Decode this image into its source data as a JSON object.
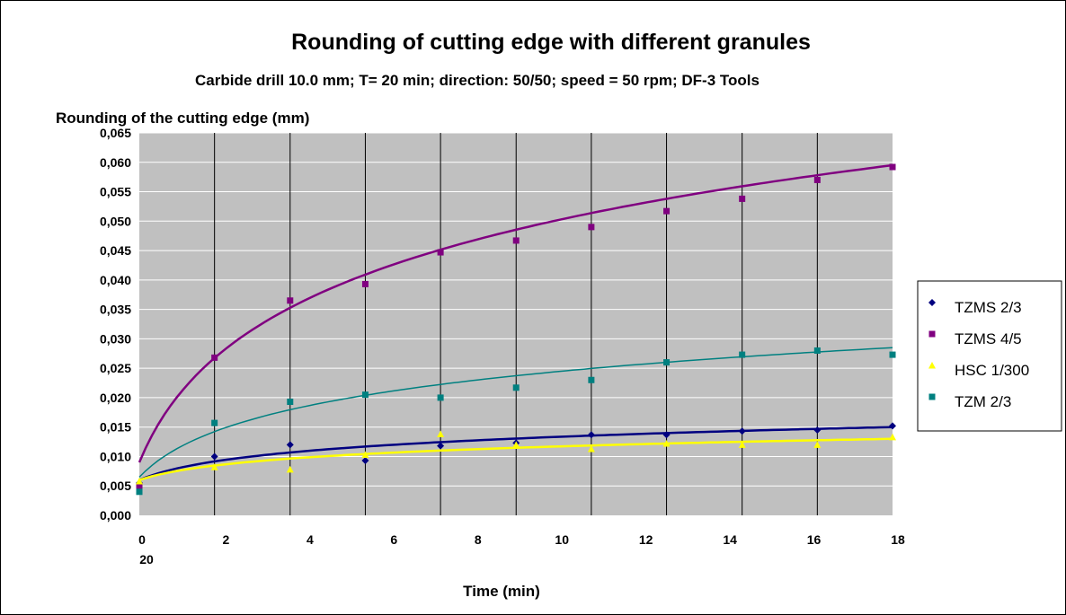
{
  "chart_data": {
    "type": "scatter",
    "title": "Rounding of cutting edge with different granules",
    "subtitle": "Carbide drill 10.0 mm; T= 20 min;   direction: 50/50; speed = 50 rpm; DF-3 Tools",
    "ylabel": "Rounding of the cutting edge (mm)",
    "xlabel": "Time (min)",
    "x_tick_labels": [
      "0",
      "2",
      "4",
      "6",
      "8",
      "10",
      "12",
      "14",
      "16",
      "18"
    ],
    "x_extra_label": "20",
    "y_tick_labels": [
      "0,000",
      "0,005",
      "0,010",
      "0,015",
      "0,020",
      "0,025",
      "0,030",
      "0,035",
      "0,040",
      "0,045",
      "0,050",
      "0,055",
      "0,060",
      "0,065"
    ],
    "xlim": [
      0,
      18
    ],
    "ylim": [
      0,
      0.065
    ],
    "grid": true,
    "legend_position": "right",
    "colors": {
      "plot_area": "#c0c0c0",
      "TZMS 2/3": "#000080",
      "TZMS 4/5": "#800080",
      "HSC 1/300": "#ffff00",
      "TZM 2/3": "#008080"
    },
    "x_positions": [
      0,
      1.83,
      3.67,
      5.5,
      7.33,
      9.17,
      11.0,
      12.83,
      14.67,
      16.5,
      18.33
    ],
    "series": [
      {
        "name": "TZMS 2/3",
        "marker": "diamond",
        "values": [
          0.0055,
          0.01,
          0.012,
          0.0093,
          0.0118,
          0.0123,
          0.0137,
          0.0137,
          0.0143,
          0.0145,
          0.0152
        ],
        "trend": [
          0.006,
          0.015
        ]
      },
      {
        "name": "TZMS 4/5",
        "marker": "square",
        "values": [
          0.005,
          0.0268,
          0.0365,
          0.0393,
          0.0447,
          0.0467,
          0.049,
          0.0517,
          0.0538,
          0.057,
          0.0592
        ],
        "trend": [
          0.009,
          0.0595
        ]
      },
      {
        "name": "HSC 1/300",
        "marker": "triangle",
        "values": [
          0.0058,
          0.0082,
          0.0078,
          0.0103,
          0.0138,
          0.012,
          0.0113,
          0.0122,
          0.012,
          0.012,
          0.0133
        ],
        "trend": [
          0.006,
          0.013
        ]
      },
      {
        "name": "TZM 2/3",
        "marker": "square",
        "values": [
          0.004,
          0.0157,
          0.0193,
          0.0205,
          0.02,
          0.0217,
          0.023,
          0.026,
          0.0273,
          0.028,
          0.0273
        ],
        "trend": [
          0.0065,
          0.0285
        ]
      }
    ]
  }
}
